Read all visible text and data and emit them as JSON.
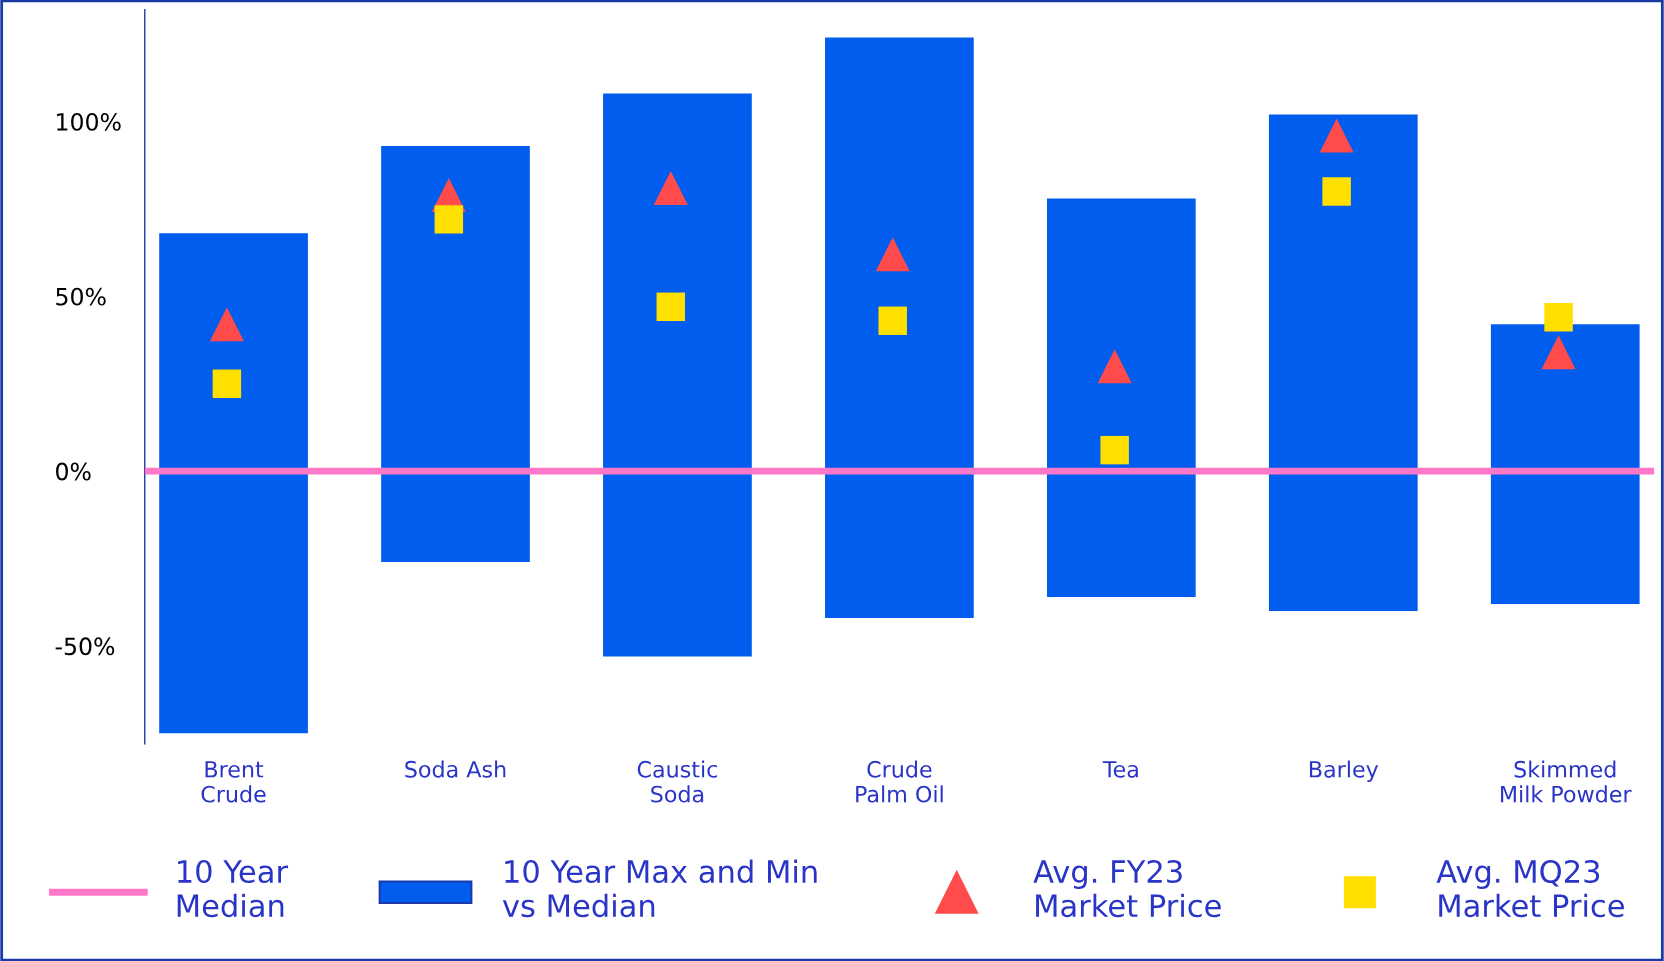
{
  "chart_data": {
    "type": "bar",
    "categories": [
      "Brent\nCrude",
      "Soda Ash",
      "Caustic\nSoda",
      "Crude\nPalm Oil",
      "Tea",
      "Barley",
      "Skimmed\nMilk Powder"
    ],
    "series": [
      {
        "name": "10 Year Max and Min\nvs Median",
        "type": "bar",
        "color": "#005ded",
        "base": [
          -75,
          -26,
          -53,
          -42,
          -36,
          -40,
          -38
        ],
        "values": [
          143,
          119,
          161,
          166,
          114,
          142,
          80
        ]
      },
      {
        "name": "Avg. FY23\nMarket Price",
        "type": "scatter",
        "marker": "triangle",
        "color": "#ff4b4b",
        "values": [
          42,
          79,
          81,
          62,
          30,
          96,
          34
        ]
      },
      {
        "name": "Avg. MQ23\nMarket Price",
        "type": "scatter",
        "marker": "square",
        "color": "#ffe000",
        "values": [
          25,
          72,
          47,
          43,
          6,
          80,
          44
        ]
      }
    ],
    "ref_lines": [
      {
        "axis": "y",
        "value": 0,
        "label": "10 Year\nMedian",
        "color": "#ff77c8",
        "line_style": "solid"
      }
    ],
    "ylim": [
      -78,
      132
    ],
    "yticks": [
      {
        "value": 100,
        "label": "100%"
      },
      {
        "value": 50,
        "label": "50%"
      },
      {
        "value": 0,
        "label": "0%"
      },
      {
        "value": -50,
        "label": "-50%"
      }
    ],
    "grid": false,
    "legend": "bottom"
  }
}
